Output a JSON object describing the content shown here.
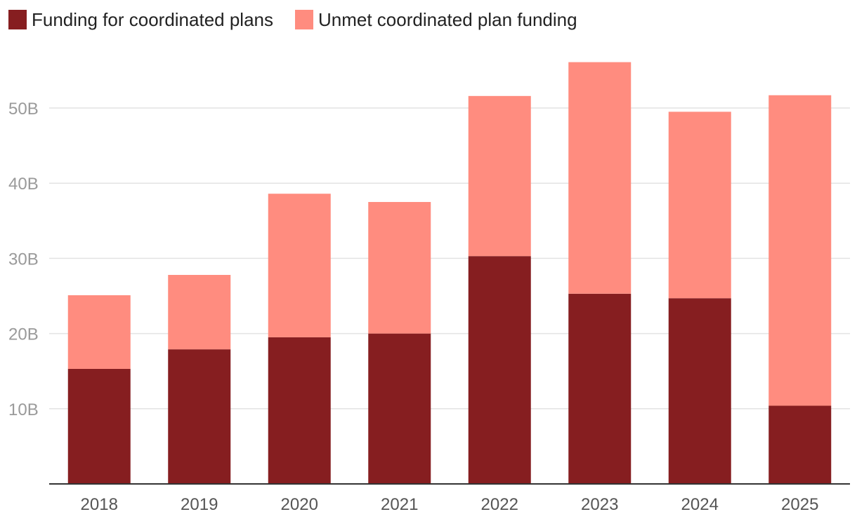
{
  "chart_data": {
    "type": "bar",
    "stacked": true,
    "title": "",
    "xlabel": "",
    "ylabel": "",
    "categories": [
      "2018",
      "2019",
      "2020",
      "2021",
      "2022",
      "2023",
      "2024",
      "2025"
    ],
    "series": [
      {
        "name": "Funding for coordinated plans",
        "color": "#861e20",
        "values": [
          15.3,
          17.9,
          19.5,
          20.0,
          30.3,
          25.3,
          24.7,
          10.4
        ]
      },
      {
        "name": "Unmet coordinated plan funding",
        "color": "#ff8c7f",
        "values": [
          9.8,
          9.9,
          19.1,
          17.5,
          21.3,
          30.8,
          24.8,
          41.3
        ]
      }
    ],
    "ylim": [
      0,
      57
    ],
    "yticks": [
      10,
      20,
      30,
      40,
      50
    ],
    "ytick_labels": [
      "10B",
      "20B",
      "30B",
      "40B",
      "50B"
    ],
    "grid": true,
    "legend": "top-left"
  }
}
